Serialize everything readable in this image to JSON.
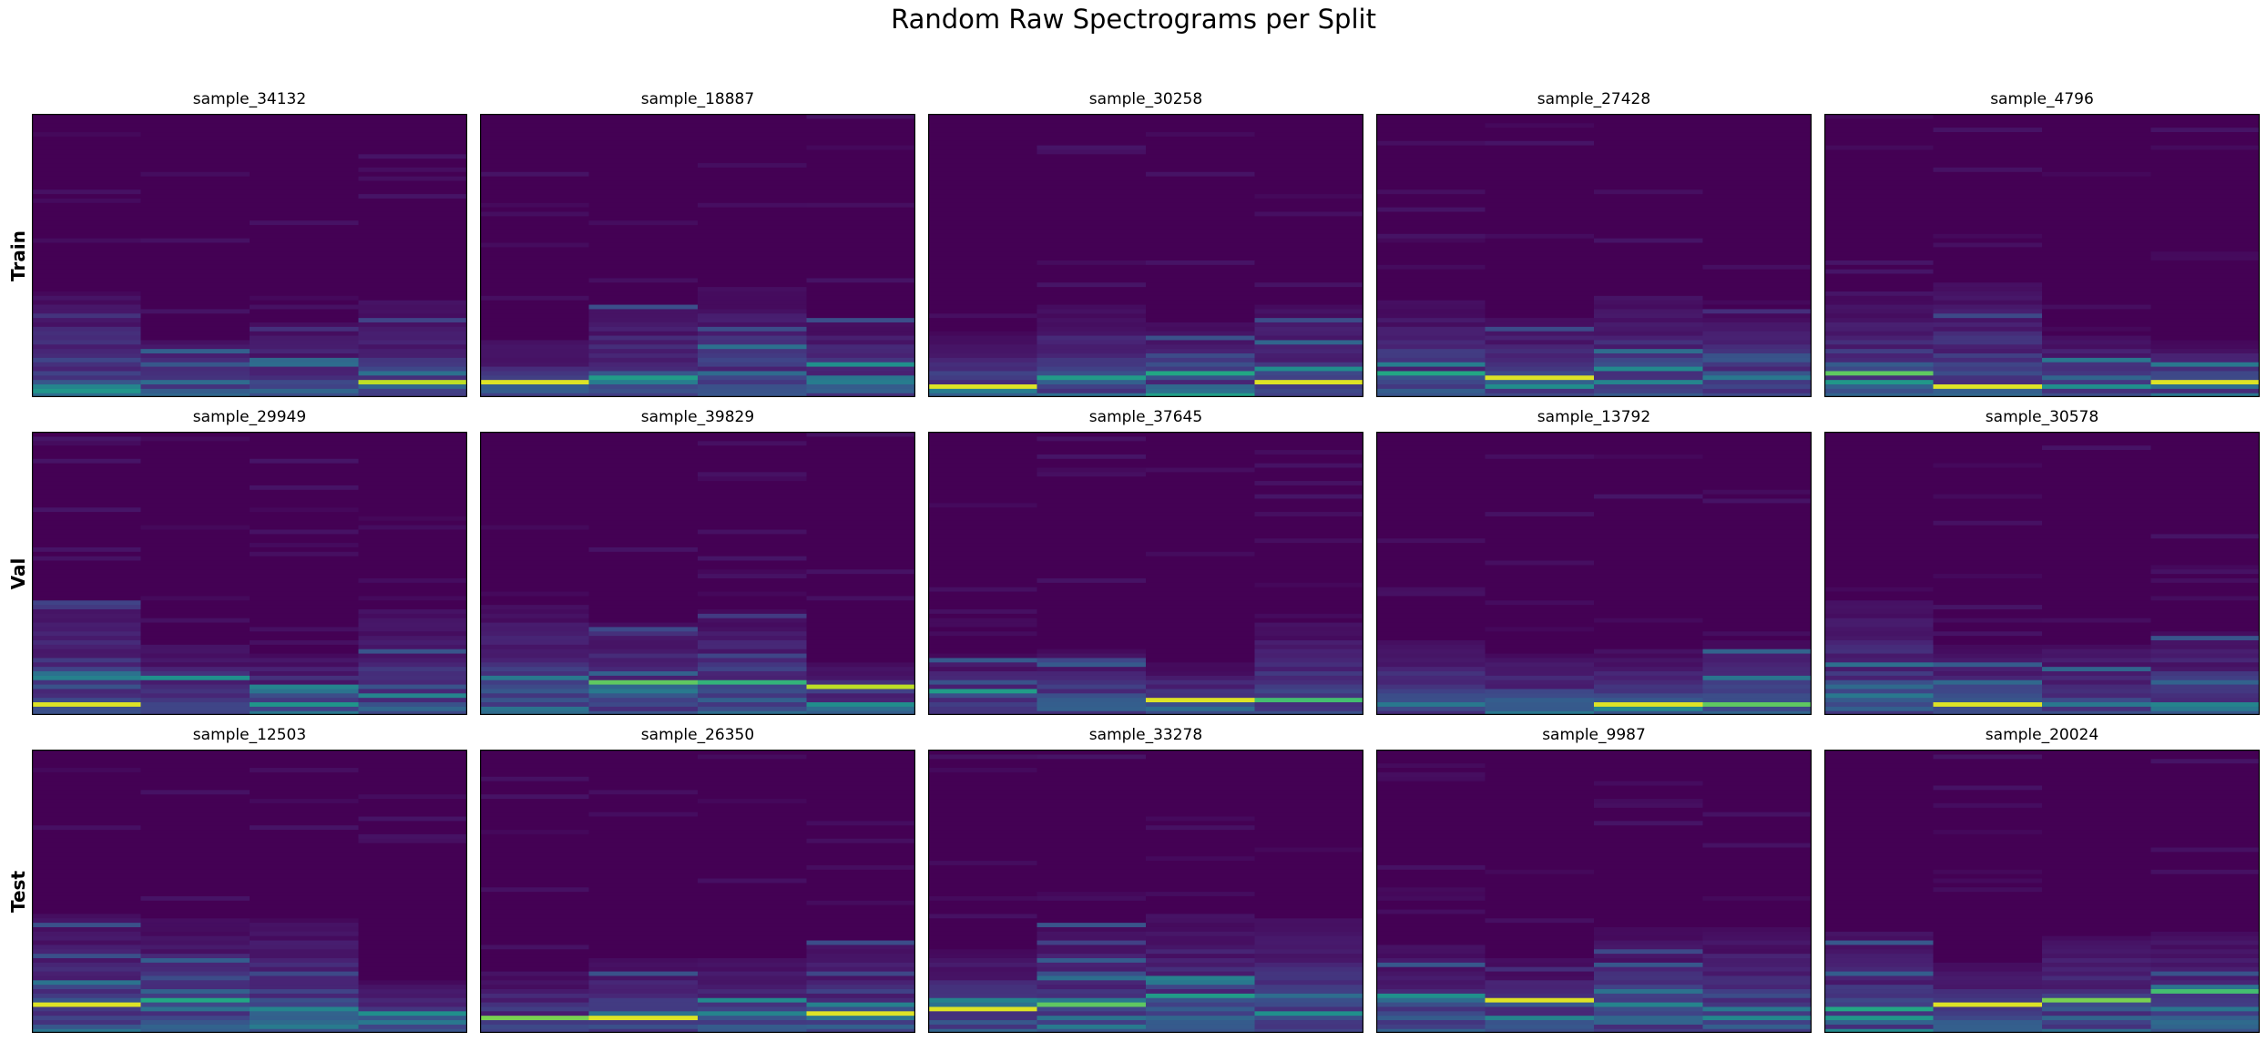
{
  "chart_data": {
    "type": "heatmap",
    "title": "Random Raw Spectrograms per Split",
    "colormap": "viridis",
    "colors": {
      "low": "#440154",
      "mid": "#21918c",
      "high": "#fde725"
    },
    "grid": false,
    "axes_ticks": false,
    "rows": [
      {
        "label": "Train",
        "samples": [
          "sample_34132",
          "sample_18887",
          "sample_30258",
          "sample_27428",
          "sample_4796"
        ]
      },
      {
        "label": "Val",
        "samples": [
          "sample_29949",
          "sample_39829",
          "sample_37645",
          "sample_13792",
          "sample_30578"
        ]
      },
      {
        "label": "Test",
        "samples": [
          "sample_12503",
          "sample_26350",
          "sample_33278",
          "sample_9987",
          "sample_20024"
        ]
      }
    ],
    "time_frames": 4,
    "freq_bins": 64,
    "hot_bins": [
      [
        [
          [
            2,
            0.45
          ],
          [
            3,
            0.35
          ],
          [
            1,
            0.25
          ],
          [
            3,
            0.9
          ]
        ],
        [
          [
            3,
            0.95
          ],
          [
            4,
            0.55
          ],
          [
            5,
            0.35
          ],
          [
            7,
            0.5
          ]
        ],
        [
          [
            2,
            0.95
          ],
          [
            4,
            0.55
          ],
          [
            5,
            0.6
          ],
          [
            3,
            0.95
          ]
        ],
        [
          [
            5,
            0.6
          ],
          [
            4,
            0.95
          ],
          [
            3,
            0.45
          ],
          [
            4,
            0.4
          ]
        ],
        [
          [
            5,
            0.75
          ],
          [
            2,
            0.95
          ],
          [
            2,
            0.5
          ],
          [
            3,
            0.95
          ]
        ]
      ],
      [
        [
          [
            2,
            0.95
          ],
          [
            8,
            0.5
          ],
          [
            6,
            0.45
          ],
          [
            4,
            0.45
          ]
        ],
        [
          [
            8,
            0.4
          ],
          [
            7,
            0.75
          ],
          [
            7,
            0.65
          ],
          [
            6,
            0.9
          ]
        ],
        [
          [
            5,
            0.55
          ],
          [
            2,
            0.3
          ],
          [
            3,
            0.95
          ],
          [
            3,
            0.7
          ]
        ],
        [
          [
            2,
            0.3
          ],
          [
            3,
            0.3
          ],
          [
            2,
            0.95
          ],
          [
            2,
            0.75
          ]
        ],
        [
          [
            4,
            0.4
          ],
          [
            2,
            0.95
          ],
          [
            2,
            0.4
          ],
          [
            2,
            0.45
          ]
        ]
      ],
      [
        [
          [
            6,
            0.95
          ],
          [
            7,
            0.6
          ],
          [
            5,
            0.45
          ],
          [
            4,
            0.5
          ]
        ],
        [
          [
            3,
            0.8
          ],
          [
            3,
            0.95
          ],
          [
            4,
            0.45
          ],
          [
            4,
            0.95
          ]
        ],
        [
          [
            5,
            0.95
          ],
          [
            6,
            0.75
          ],
          [
            8,
            0.55
          ],
          [
            4,
            0.5
          ]
        ],
        [
          [
            8,
            0.5
          ],
          [
            7,
            0.95
          ],
          [
            6,
            0.45
          ],
          [
            5,
            0.4
          ]
        ],
        [
          [
            5,
            0.6
          ],
          [
            6,
            0.95
          ],
          [
            7,
            0.8
          ],
          [
            9,
            0.7
          ]
        ]
      ]
    ]
  }
}
